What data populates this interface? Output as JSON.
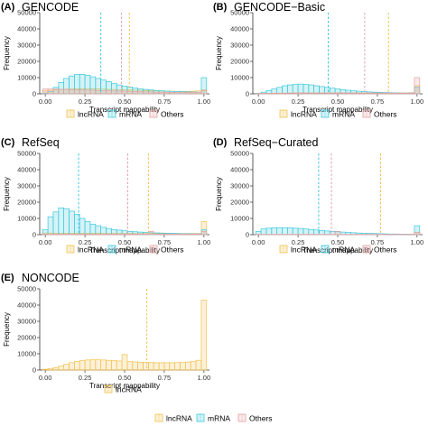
{
  "figure": {
    "bottom_legend": [
      "lncRNA",
      "mRNA",
      "Others"
    ]
  },
  "colors": {
    "lncRNA": "#f2c14e",
    "mRNA": "#3cc8dc",
    "Others": "#e8a0a4"
  },
  "chart_data": [
    {
      "panel": "(A)",
      "title": "GENCODE",
      "type": "bar",
      "xlabel": "Transcript mappability",
      "ylabel": "Frequency",
      "xlim": [
        0,
        1
      ],
      "ylim": [
        0,
        50000
      ],
      "x_ticks": [
        "0.00",
        "0.25",
        "0.50",
        "0.75",
        "1.00"
      ],
      "y_ticks": [
        "0",
        "10000",
        "20000",
        "30000",
        "40000",
        "50000"
      ],
      "legend": [
        "lncRNA",
        "mRNA",
        "Others"
      ],
      "series": [
        {
          "name": "lncRNA",
          "values": [
            2000,
            2200,
            2500,
            2700,
            2900,
            3000,
            3100,
            3200,
            3200,
            3100,
            3000,
            2900,
            2800,
            2700,
            2600,
            2500,
            2400,
            2300,
            2200,
            2100,
            2000,
            1900,
            1800,
            1700,
            1600,
            1500,
            1500,
            1500,
            1600,
            1800,
            2500
          ]
        },
        {
          "name": "mRNA",
          "values": [
            500,
            1500,
            4000,
            7000,
            9500,
            11000,
            12000,
            12000,
            11500,
            10500,
            9500,
            8500,
            7500,
            6500,
            5500,
            4800,
            4200,
            3600,
            3100,
            2700,
            2400,
            2100,
            1900,
            1700,
            1500,
            1400,
            1300,
            1200,
            1100,
            1000,
            10000
          ]
        },
        {
          "name": "Others",
          "values": [
            3000,
            3000,
            2900,
            2800,
            2700,
            2600,
            2500,
            2400,
            2300,
            2200,
            2100,
            2000,
            1900,
            1800,
            1700,
            1600,
            1500,
            1400,
            1300,
            1200,
            1100,
            1000,
            1000,
            900,
            900,
            800,
            800,
            800,
            900,
            1000,
            2000
          ]
        }
      ],
      "means": [
        {
          "series": "lncRNA",
          "x": 0.53
        },
        {
          "series": "mRNA",
          "x": 0.35
        },
        {
          "series": "Others",
          "x": 0.48
        }
      ]
    },
    {
      "panel": "(B)",
      "title": "GENCODE−Basic",
      "type": "bar",
      "xlabel": "Transcript mappability",
      "ylabel": "Frequency",
      "xlim": [
        0,
        1
      ],
      "ylim": [
        0,
        50000
      ],
      "x_ticks": [
        "0.00",
        "0.25",
        "0.50",
        "0.75",
        "1.00"
      ],
      "y_ticks": [
        "0",
        "10000",
        "20000",
        "30000",
        "40000",
        "50000"
      ],
      "legend": [
        "lncRNA",
        "mRNA",
        "Others"
      ],
      "series": [
        {
          "name": "lncRNA",
          "values": [
            300,
            300,
            350,
            400,
            450,
            500,
            550,
            600,
            600,
            600,
            600,
            600,
            600,
            600,
            600,
            600,
            600,
            600,
            600,
            600,
            600,
            600,
            600,
            600,
            600,
            600,
            600,
            600,
            600,
            700,
            5000
          ]
        },
        {
          "name": "mRNA",
          "values": [
            300,
            1000,
            2000,
            3000,
            4000,
            5000,
            5500,
            5800,
            6000,
            5800,
            5500,
            5000,
            4500,
            4000,
            3500,
            3000,
            2600,
            2200,
            1900,
            1600,
            1400,
            1200,
            1000,
            900,
            800,
            700,
            600,
            500,
            500,
            500,
            4000
          ]
        },
        {
          "name": "Others",
          "values": [
            200,
            200,
            250,
            300,
            350,
            400,
            450,
            500,
            500,
            500,
            500,
            500,
            500,
            500,
            500,
            500,
            500,
            500,
            500,
            500,
            500,
            500,
            500,
            500,
            500,
            500,
            500,
            500,
            500,
            600,
            10000
          ]
        }
      ],
      "means": [
        {
          "series": "lncRNA",
          "x": 0.82
        },
        {
          "series": "mRNA",
          "x": 0.44
        },
        {
          "series": "Others",
          "x": 0.67
        }
      ]
    },
    {
      "panel": "(C)",
      "title": "RefSeq",
      "type": "bar",
      "xlabel": "Transcript mappability",
      "ylabel": "Frequency",
      "xlim": [
        0,
        1
      ],
      "ylim": [
        0,
        50000
      ],
      "x_ticks": [
        "0.00",
        "0.25",
        "0.50",
        "0.75",
        "1.00"
      ],
      "y_ticks": [
        "0",
        "10000",
        "20000",
        "30000",
        "40000",
        "50000"
      ],
      "legend": [
        "lncRNA",
        "mRNA",
        "Others"
      ],
      "series": [
        {
          "name": "lncRNA",
          "values": [
            1000,
            1000,
            900,
            900,
            900,
            900,
            800,
            800,
            800,
            800,
            800,
            700,
            700,
            700,
            700,
            700,
            700,
            700,
            700,
            700,
            700,
            700,
            700,
            700,
            700,
            700,
            700,
            700,
            700,
            700,
            8000
          ]
        },
        {
          "name": "mRNA",
          "values": [
            3000,
            11000,
            14000,
            16500,
            16000,
            14500,
            12500,
            10000,
            8000,
            6500,
            5500,
            4500,
            3800,
            3200,
            2800,
            2400,
            2000,
            1800,
            1600,
            1400,
            1200,
            1100,
            1000,
            900,
            800,
            700,
            600,
            600,
            500,
            500,
            3000
          ]
        },
        {
          "name": "Others",
          "values": [
            300,
            300,
            300,
            300,
            300,
            300,
            300,
            300,
            300,
            300,
            300,
            300,
            300,
            300,
            300,
            300,
            300,
            300,
            300,
            300,
            2000,
            300,
            300,
            300,
            300,
            300,
            300,
            300,
            300,
            300,
            2000
          ]
        }
      ],
      "means": [
        {
          "series": "lncRNA",
          "x": 0.65
        },
        {
          "series": "mRNA",
          "x": 0.21
        },
        {
          "series": "Others",
          "x": 0.52
        }
      ]
    },
    {
      "panel": "(D)",
      "title": "RefSeq−Curated",
      "type": "bar",
      "xlabel": "Transcript mappability",
      "ylabel": "Frequency",
      "xlim": [
        0,
        1
      ],
      "ylim": [
        0,
        50000
      ],
      "x_ticks": [
        "0.00",
        "0.25",
        "0.50",
        "0.75",
        "1.00"
      ],
      "y_ticks": [
        "0",
        "10000",
        "20000",
        "30000",
        "40000",
        "50000"
      ],
      "legend": [
        "lncRNA",
        "mRNA",
        "Others"
      ],
      "series": [
        {
          "name": "lncRNA",
          "values": [
            100,
            100,
            100,
            100,
            100,
            100,
            100,
            100,
            100,
            100,
            100,
            100,
            100,
            100,
            100,
            100,
            100,
            100,
            100,
            100,
            100,
            100,
            100,
            100,
            100,
            100,
            100,
            100,
            100,
            100,
            1500
          ]
        },
        {
          "name": "mRNA",
          "values": [
            2000,
            3500,
            4000,
            4200,
            4300,
            4300,
            4200,
            4000,
            3800,
            3500,
            3200,
            2900,
            2600,
            2300,
            2000,
            1800,
            1600,
            1400,
            1200,
            1000,
            900,
            800,
            700,
            600,
            500,
            400,
            400,
            300,
            300,
            300,
            5500
          ]
        },
        {
          "name": "Others",
          "values": [
            200,
            200,
            200,
            200,
            200,
            200,
            200,
            200,
            200,
            200,
            200,
            200,
            200,
            200,
            200,
            2000,
            200,
            200,
            200,
            200,
            200,
            200,
            200,
            200,
            200,
            200,
            200,
            200,
            200,
            200,
            1500
          ]
        }
      ],
      "means": [
        {
          "series": "lncRNA",
          "x": 0.77
        },
        {
          "series": "mRNA",
          "x": 0.38
        },
        {
          "series": "Others",
          "x": 0.46
        }
      ]
    },
    {
      "panel": "(E)",
      "title": "NONCODE",
      "type": "bar",
      "xlabel": "Transcript mappability",
      "ylabel": "Frequency",
      "xlim": [
        0,
        1
      ],
      "ylim": [
        0,
        50000
      ],
      "x_ticks": [
        "0.00",
        "0.25",
        "0.50",
        "0.75",
        "1.00"
      ],
      "y_ticks": [
        "0",
        "10000",
        "20000",
        "30000",
        "40000",
        "50000"
      ],
      "legend": [
        "lncRNA"
      ],
      "series": [
        {
          "name": "lncRNA",
          "values": [
            500,
            1000,
            1500,
            2500,
            3500,
            4500,
            5200,
            5800,
            6200,
            6300,
            6300,
            6200,
            6000,
            5800,
            5600,
            9500,
            5200,
            5000,
            4800,
            4700,
            4600,
            4500,
            4500,
            4500,
            4500,
            4600,
            4700,
            4900,
            5200,
            6000,
            43000
          ]
        }
      ],
      "means": [
        {
          "series": "lncRNA",
          "x": 0.64
        }
      ]
    }
  ]
}
